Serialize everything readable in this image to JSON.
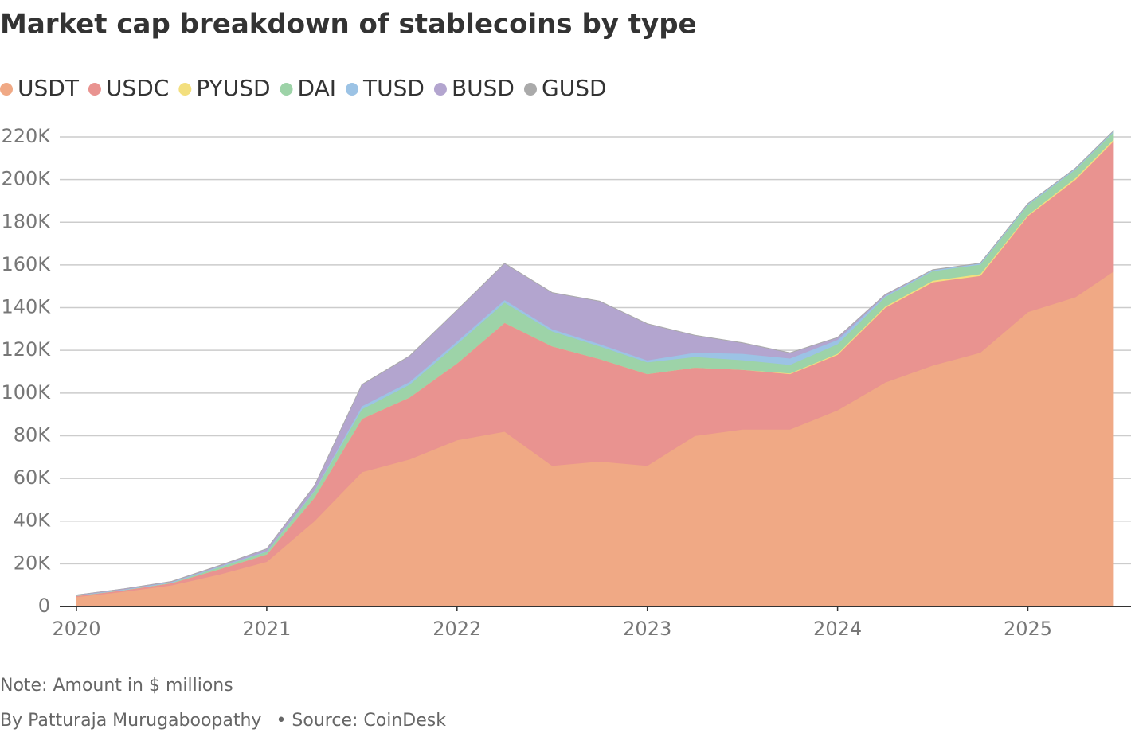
{
  "chart_data": {
    "type": "stacked_area",
    "title": "Market cap breakdown of stablecoins by type",
    "note": "Note: Amount in $ millions",
    "byline": "By Patturaja Murugaboopathy",
    "source": "• Source: CoinDesk",
    "x": [
      2020.0,
      2020.25,
      2020.5,
      2020.75,
      2021.0,
      2021.25,
      2021.5,
      2021.75,
      2022.0,
      2022.25,
      2022.5,
      2022.75,
      2023.0,
      2023.25,
      2023.5,
      2023.75,
      2024.0,
      2024.25,
      2024.5,
      2024.75,
      2025.0,
      2025.25,
      2025.45
    ],
    "series": [
      {
        "name": "USDT",
        "color": "#f0a985",
        "values": [
          4500,
          7000,
          10000,
          15000,
          21000,
          40000,
          63000,
          69000,
          78000,
          82000,
          66000,
          68000,
          66000,
          80000,
          83000,
          83000,
          92000,
          105000,
          113000,
          119000,
          138000,
          145000,
          157000
        ]
      },
      {
        "name": "USDC",
        "color": "#e99390",
        "values": [
          500,
          700,
          1000,
          2500,
          3500,
          11000,
          25000,
          29000,
          36000,
          51000,
          56000,
          48000,
          43000,
          32000,
          28000,
          26000,
          26000,
          35000,
          39000,
          36000,
          45000,
          55000,
          61000
        ]
      },
      {
        "name": "PYUSD",
        "color": "#f3df7e",
        "values": [
          0,
          0,
          0,
          0,
          0,
          0,
          0,
          0,
          0,
          0,
          0,
          0,
          0,
          0,
          0,
          300,
          500,
          600,
          700,
          800,
          500,
          800,
          800
        ]
      },
      {
        "name": "DAI",
        "color": "#9dd3a8",
        "values": [
          100,
          100,
          200,
          900,
          1200,
          3000,
          4500,
          6000,
          9000,
          9500,
          7000,
          6000,
          5500,
          5000,
          4500,
          4000,
          4500,
          4500,
          4500,
          4500,
          4700,
          4000,
          3500
        ]
      },
      {
        "name": "TUSD",
        "color": "#9cc3e5",
        "values": [
          100,
          200,
          300,
          400,
          300,
          400,
          1400,
          1300,
          1300,
          1200,
          1000,
          1000,
          900,
          2000,
          3000,
          3000,
          2000,
          500,
          500,
          500,
          500,
          500,
          500
        ]
      },
      {
        "name": "BUSD",
        "color": "#b3a5cf",
        "values": [
          200,
          300,
          200,
          300,
          1000,
          2000,
          10000,
          12000,
          14500,
          17000,
          17000,
          20000,
          17000,
          8000,
          5000,
          2500,
          1000,
          500,
          0,
          0,
          0,
          0,
          0
        ]
      },
      {
        "name": "GUSD",
        "color": "#aaaaaa",
        "values": [
          0,
          0,
          100,
          100,
          100,
          100,
          100,
          100,
          100,
          100,
          100,
          100,
          100,
          100,
          100,
          100,
          100,
          100,
          100,
          100,
          100,
          100,
          100
        ]
      }
    ],
    "xlim": [
      2020.0,
      2025.45
    ],
    "xticks": [
      2020,
      2021,
      2022,
      2023,
      2024,
      2025
    ],
    "ylim": [
      0,
      220000
    ],
    "yticks": [
      0,
      {
        "value": 20000,
        "label": "20K"
      },
      {
        "value": 40000,
        "label": "40K"
      },
      {
        "value": 60000,
        "label": "60K"
      },
      {
        "value": 80000,
        "label": "80K"
      },
      {
        "value": 100000,
        "label": "100K"
      },
      {
        "value": 120000,
        "label": "120K"
      },
      {
        "value": 140000,
        "label": "140K"
      },
      {
        "value": 160000,
        "label": "160K"
      },
      {
        "value": 180000,
        "label": "180K"
      },
      {
        "value": 200000,
        "label": "200K"
      },
      {
        "value": 220000,
        "label": "220K"
      }
    ],
    "grid": true
  }
}
